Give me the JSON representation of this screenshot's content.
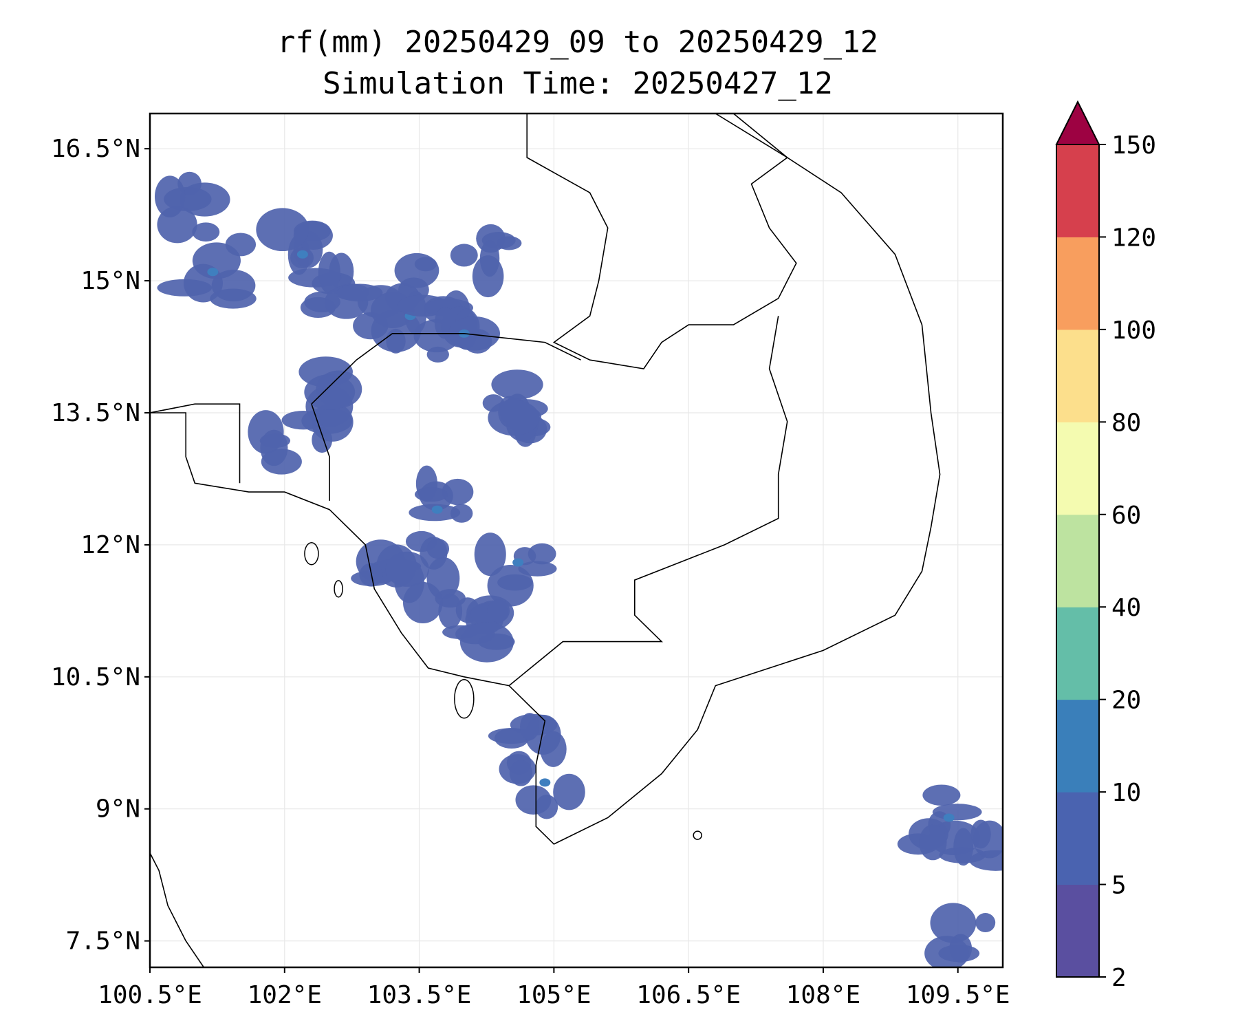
{
  "title": {
    "line1": "rf(mm) 20250429_09 to 20250429_12",
    "line2": "Simulation Time: 20250427_12"
  },
  "map": {
    "lon_range": [
      100.5,
      110.0
    ],
    "lat_range": [
      7.2,
      16.9
    ],
    "lon_ticks": [
      {
        "value": 100.5,
        "label": "100.5°E"
      },
      {
        "value": 102.0,
        "label": "102°E"
      },
      {
        "value": 103.5,
        "label": "103.5°E"
      },
      {
        "value": 105.0,
        "label": "105°E"
      },
      {
        "value": 106.5,
        "label": "106.5°E"
      },
      {
        "value": 108.0,
        "label": "108°E"
      },
      {
        "value": 109.5,
        "label": "109.5°E"
      }
    ],
    "lat_ticks": [
      {
        "value": 16.5,
        "label": "16.5°N"
      },
      {
        "value": 15.0,
        "label": "15°N"
      },
      {
        "value": 13.5,
        "label": "13.5°N"
      },
      {
        "value": 12.0,
        "label": "12°N"
      },
      {
        "value": 10.5,
        "label": "10.5°N"
      },
      {
        "value": 9.0,
        "label": "9°N"
      },
      {
        "value": 7.5,
        "label": "7.5°N"
      }
    ],
    "gridlines": true,
    "rain_fill_color": "#4f63ad",
    "rain_core_color": "#3f7fbf"
  },
  "colorbar": {
    "levels": [
      "2",
      "5",
      "10",
      "20",
      "40",
      "60",
      "80",
      "100",
      "120",
      "150"
    ],
    "colors": [
      "#5a4fa0",
      "#4a63b0",
      "#3a7fba",
      "#64bea8",
      "#bde3a0",
      "#f4fbb0",
      "#fcdf8c",
      "#f89e5e",
      "#d6404d"
    ],
    "extend_color": "#9d0242",
    "extend": "max"
  },
  "rain_cells": [
    {
      "lon": 102.2,
      "lat": 15.3
    },
    {
      "lon": 102.6,
      "lat": 15.0
    },
    {
      "lon": 103.0,
      "lat": 14.7
    },
    {
      "lon": 103.4,
      "lat": 14.6
    },
    {
      "lon": 103.8,
      "lat": 14.9
    },
    {
      "lon": 104.3,
      "lat": 15.2
    },
    {
      "lon": 104.0,
      "lat": 14.4
    },
    {
      "lon": 102.5,
      "lat": 13.7
    },
    {
      "lon": 102.1,
      "lat": 13.2
    },
    {
      "lon": 103.7,
      "lat": 12.4
    },
    {
      "lon": 103.5,
      "lat": 11.9
    },
    {
      "lon": 104.0,
      "lat": 11.3
    },
    {
      "lon": 104.6,
      "lat": 11.8
    },
    {
      "lon": 104.3,
      "lat": 11.0
    },
    {
      "lon": 103.3,
      "lat": 11.5
    },
    {
      "lon": 104.9,
      "lat": 9.3
    },
    {
      "lon": 104.8,
      "lat": 9.8
    },
    {
      "lon": 109.6,
      "lat": 8.6
    },
    {
      "lon": 109.4,
      "lat": 8.9
    },
    {
      "lon": 109.7,
      "lat": 7.4
    },
    {
      "lon": 100.8,
      "lat": 15.8
    },
    {
      "lon": 101.2,
      "lat": 15.1
    },
    {
      "lon": 104.8,
      "lat": 13.3
    },
    {
      "lon": 104.5,
      "lat": 13.6
    }
  ]
}
